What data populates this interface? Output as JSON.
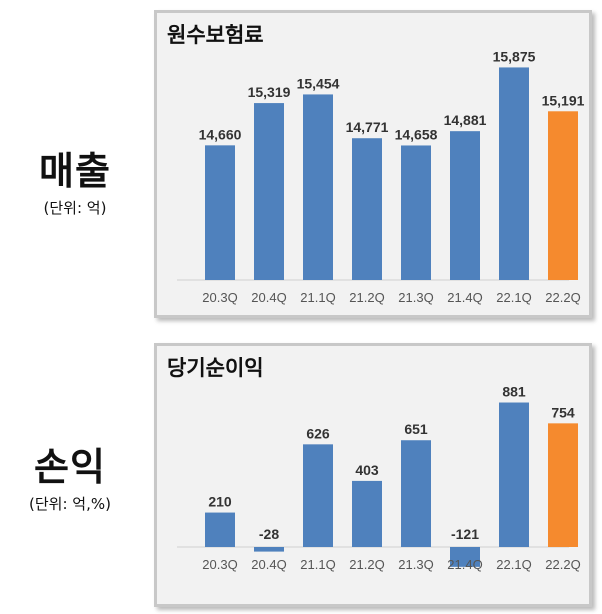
{
  "labels": {
    "sales": {
      "title": "매출",
      "unit": "(단위: 억)"
    },
    "profit": {
      "title": "손익",
      "unit": "(단위: 억,%)"
    }
  },
  "colors": {
    "bar": "#4f81bd",
    "highlight": "#f58a2e"
  },
  "chart_data": [
    {
      "type": "bar",
      "title": "원수보험료",
      "categories": [
        "20.3Q",
        "20.4Q",
        "21.1Q",
        "21.2Q",
        "21.3Q",
        "21.4Q",
        "22.1Q",
        "22.2Q"
      ],
      "values": [
        14660,
        15319,
        15454,
        14771,
        14658,
        14881,
        15875,
        15191
      ],
      "value_labels": [
        "14,660",
        "15,319",
        "15,454",
        "14,771",
        "14,658",
        "14,881",
        "15,875",
        "15,191"
      ],
      "highlight_index": 7,
      "ylim": [
        12560,
        16100
      ],
      "grid": false
    },
    {
      "type": "bar",
      "title": "당기순이익",
      "categories": [
        "20.3Q",
        "20.4Q",
        "21.1Q",
        "21.2Q",
        "21.3Q",
        "21.4Q",
        "22.1Q",
        "22.2Q"
      ],
      "values": [
        210,
        -28,
        626,
        403,
        651,
        -121,
        881,
        754
      ],
      "value_labels": [
        "210",
        "-28",
        "626",
        "403",
        "651",
        "-121",
        "881",
        "754"
      ],
      "highlight_index": 7,
      "ylim": [
        -121,
        1000
      ],
      "grid": false
    }
  ]
}
